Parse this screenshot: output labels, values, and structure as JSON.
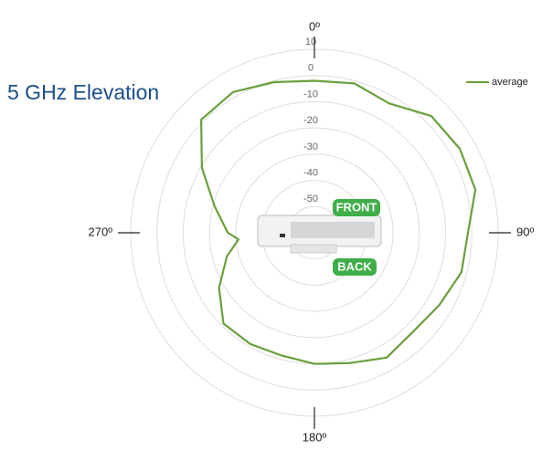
{
  "chart_data": {
    "type": "polar",
    "title": "5 GHz Elevation",
    "labels": {
      "front": "FRONT",
      "back": "BACK"
    },
    "rlim": [
      -60,
      10
    ],
    "rticks": [
      10,
      0,
      -10,
      -20,
      -30,
      -40,
      -50
    ],
    "xticks": [
      {
        "value": 0,
        "label": "0º"
      },
      {
        "value": 90,
        "label": "90º"
      },
      {
        "value": 180,
        "label": "180º"
      },
      {
        "value": 270,
        "label": "270º"
      }
    ],
    "legend": "top-right",
    "series": [
      {
        "name": "average",
        "color": "#6aa03c",
        "x": [
          0,
          15,
          30,
          45,
          60,
          75,
          90,
          105,
          120,
          135,
          150,
          165,
          180,
          195,
          210,
          225,
          240,
          255,
          265,
          270,
          285,
          300,
          315,
          330,
          345
        ],
        "values": [
          -2,
          -1,
          -3,
          3,
          4,
          3.5,
          -1.5,
          -2,
          -5,
          -6.7,
          -5,
          -8.5,
          -10,
          -11.5,
          -11,
          -11,
          -18,
          -25.5,
          -31,
          -27,
          -20.6,
          -10.5,
          1,
          2,
          -0.5
        ]
      }
    ]
  }
}
